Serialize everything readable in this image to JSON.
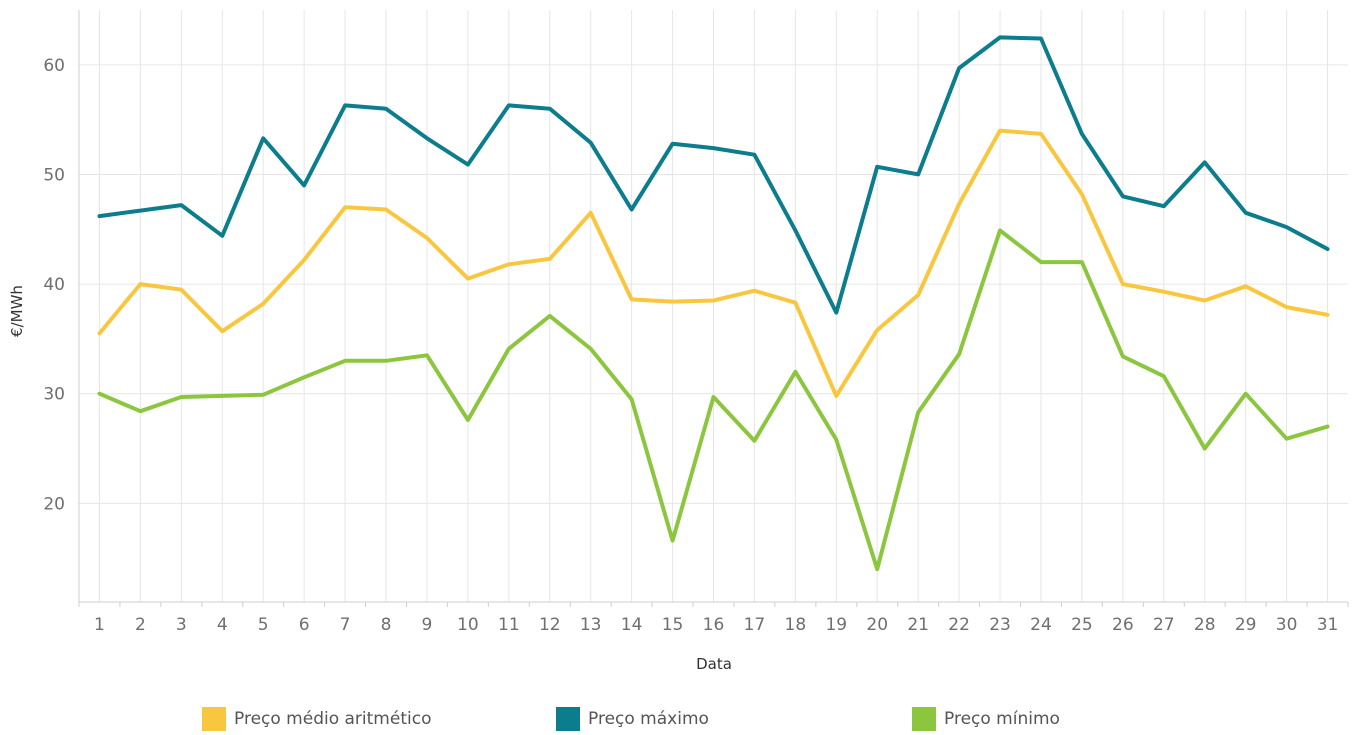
{
  "chart_data": {
    "type": "line",
    "xlabel": "Data",
    "ylabel": "€/MWh",
    "ylim": [
      11,
      65
    ],
    "yticks": [
      20,
      30,
      40,
      50,
      60
    ],
    "grid": true,
    "legend_position": "bottom",
    "x": [
      "1",
      "2",
      "3",
      "4",
      "5",
      "6",
      "7",
      "8",
      "9",
      "10",
      "11",
      "12",
      "13",
      "14",
      "15",
      "16",
      "17",
      "18",
      "19",
      "20",
      "21",
      "22",
      "23",
      "24",
      "25",
      "26",
      "27",
      "28",
      "29",
      "30",
      "31"
    ],
    "series": [
      {
        "name": "Preço médio aritmético",
        "color": "#f9c73f",
        "values": [
          35.5,
          40.0,
          39.5,
          35.7,
          38.2,
          42.2,
          47.0,
          46.8,
          44.2,
          40.5,
          41.8,
          42.3,
          46.5,
          38.6,
          38.4,
          38.5,
          39.4,
          38.3,
          29.8,
          35.8,
          39.0,
          47.3,
          54.0,
          53.7,
          48.2,
          40.0,
          39.3,
          38.5,
          39.8,
          37.9,
          37.2
        ]
      },
      {
        "name": "Preço máximo",
        "color": "#0b7d8c",
        "values": [
          46.2,
          46.7,
          47.2,
          44.4,
          53.3,
          49.0,
          56.3,
          56.0,
          53.3,
          50.9,
          56.3,
          56.0,
          52.9,
          46.8,
          52.8,
          52.4,
          51.8,
          44.9,
          37.4,
          50.7,
          50.0,
          59.7,
          62.5,
          62.4,
          53.7,
          48.0,
          47.1,
          51.1,
          46.5,
          45.2,
          43.2
        ]
      },
      {
        "name": "Preço mínimo",
        "color": "#8cc63f",
        "values": [
          30.0,
          28.4,
          29.7,
          29.8,
          29.9,
          31.5,
          33.0,
          33.0,
          33.5,
          27.6,
          34.1,
          37.1,
          34.1,
          29.5,
          16.6,
          29.7,
          25.7,
          32.0,
          25.8,
          14.0,
          28.3,
          33.6,
          44.9,
          42.0,
          42.0,
          33.4,
          31.6,
          25.0,
          30.0,
          25.9,
          27.0
        ]
      }
    ]
  }
}
